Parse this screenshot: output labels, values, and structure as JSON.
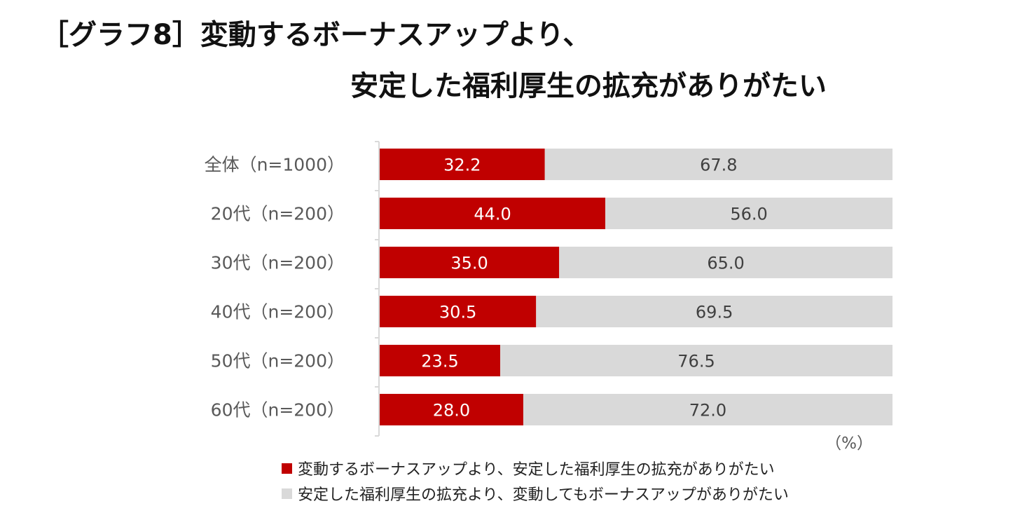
{
  "title": {
    "line1": "［グラフ8］変動するボーナスアップより、",
    "line2": "安定した福利厚生の拡充がありがたい"
  },
  "colors": {
    "series1": "#C00000",
    "series2": "#D9D9D9",
    "axis": "#D9D9D9"
  },
  "chart_data": {
    "type": "bar",
    "orientation": "horizontal",
    "stacked": true,
    "categories": [
      "全体（n=1000）",
      "20代（n=200）",
      "30代（n=200）",
      "40代（n=200）",
      "50代（n=200）",
      "60代（n=200）"
    ],
    "series": [
      {
        "name": "変動するボーナスアップより、安定した福利厚生の拡充がありがたい",
        "values": [
          32.2,
          44.0,
          35.0,
          30.5,
          23.5,
          28.0
        ],
        "color": "#C00000"
      },
      {
        "name": "安定した福利厚生の拡充より、変動してもボーナスアップがありがたい",
        "values": [
          67.8,
          56.0,
          65.0,
          69.5,
          76.5,
          72.0
        ],
        "color": "#D9D9D9"
      }
    ],
    "xlim": [
      0,
      100
    ],
    "unit": "（%）",
    "data_labels": true,
    "legend_position": "bottom",
    "grid": false
  }
}
